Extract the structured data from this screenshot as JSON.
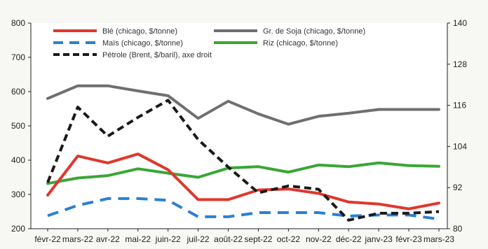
{
  "chart_data": {
    "type": "line",
    "categories": [
      "févr-22",
      "mars-22",
      "avr-22",
      "mai-22",
      "juin-22",
      "juil-22",
      "août-22",
      "sept-22",
      "oct-22",
      "nov-22",
      "déc-22",
      "janv-23",
      "févr-23",
      "mars-23"
    ],
    "y_left": {
      "ylim": [
        200,
        800
      ],
      "ticks": [
        "200",
        "300",
        "400",
        "500",
        "600",
        "700",
        "800"
      ]
    },
    "y_right": {
      "ylim": [
        80,
        140
      ],
      "ticks": [
        "80",
        "92",
        "104",
        "116",
        "128",
        "140"
      ]
    },
    "grid": false,
    "legend_position": "top",
    "series": [
      {
        "name": "Blé (chicago, $/tonne)",
        "axis": "left",
        "color": "#e0372c",
        "dash": "solid",
        "values": [
          298,
          412,
          392,
          418,
          372,
          285,
          285,
          313,
          316,
          303,
          278,
          272,
          258,
          275
        ]
      },
      {
        "name": "Gr. de Soja (chicago, $/tonne)",
        "axis": "left",
        "color": "#6f6f6f",
        "dash": "solid",
        "values": [
          580,
          617,
          617,
          602,
          588,
          522,
          572,
          535,
          505,
          528,
          537,
          548,
          548,
          548
        ]
      },
      {
        "name": "Maïs (chicago, $/tonne)",
        "axis": "left",
        "color": "#2b7fd4",
        "dash": "dashed",
        "values": [
          238,
          268,
          288,
          288,
          283,
          235,
          235,
          247,
          247,
          247,
          237,
          240,
          240,
          228
        ]
      },
      {
        "name": "Riz (chicago, $/tonne)",
        "axis": "left",
        "color": "#3aa635",
        "dash": "solid",
        "values": [
          332,
          348,
          355,
          375,
          362,
          350,
          377,
          381,
          365,
          386,
          381,
          392,
          384,
          382
        ]
      },
      {
        "name": "Pétrole (Brent, $/baril), axe droit",
        "axis": "right",
        "color": "#1a1a1a",
        "dash": "dashed",
        "values": [
          93.5,
          115.5,
          107,
          112.5,
          117.5,
          106,
          98,
          90.5,
          92.5,
          91.5,
          82.5,
          84.5,
          84.5,
          85
        ]
      }
    ]
  }
}
